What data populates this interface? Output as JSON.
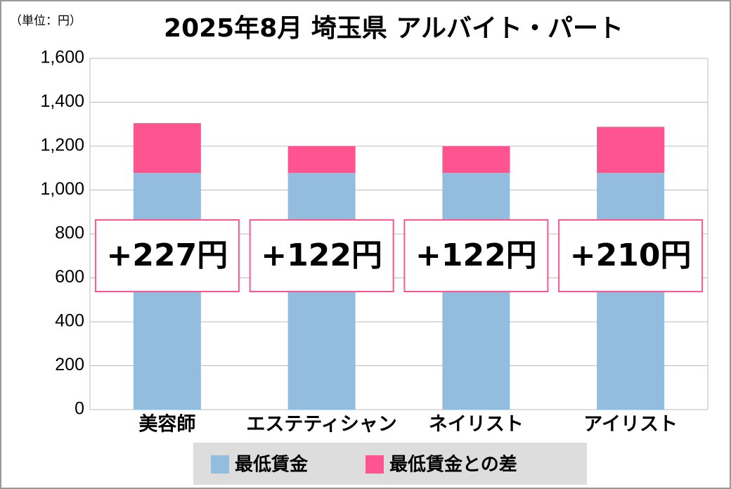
{
  "chart_data": {
    "type": "bar",
    "stacked": true,
    "title": "2025年8月 埼玉県 アルバイト・パート",
    "unit_label": "（単位：円）",
    "categories": [
      "美容師",
      "エステティシャン",
      "ネイリスト",
      "アイリスト"
    ],
    "series": [
      {
        "name": "最低賃金",
        "color": "#92bddf",
        "values": [
          1078,
          1078,
          1078,
          1078
        ]
      },
      {
        "name": "最低賃金との差",
        "color": "#fe5590",
        "values": [
          227,
          122,
          122,
          210
        ],
        "value_labels": [
          "+227円",
          "+122円",
          "+122円",
          "+210円"
        ]
      }
    ],
    "ylim": [
      0,
      1600
    ],
    "yticks": [
      0,
      200,
      400,
      600,
      800,
      {
        "value": 1000,
        "label": "1,000"
      },
      {
        "value": 1200,
        "label": "1,200"
      },
      {
        "value": 1400,
        "label": "1,400"
      },
      {
        "value": 1600,
        "label": "1,600"
      }
    ],
    "grid": true,
    "legend": "bottom"
  }
}
